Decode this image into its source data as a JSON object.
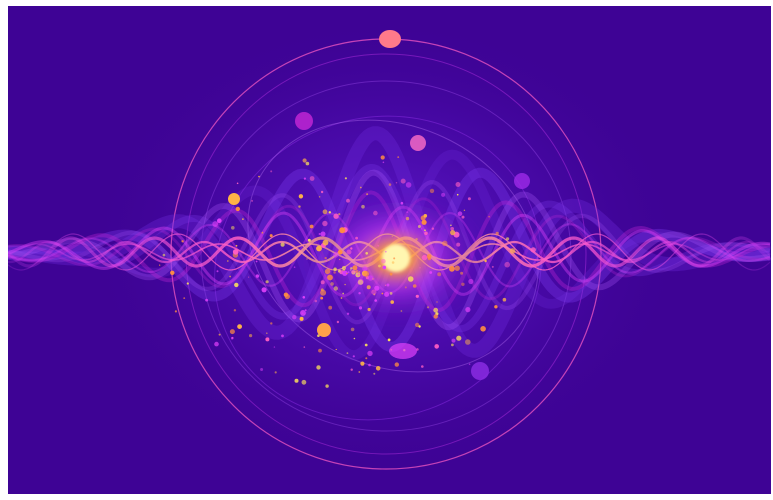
{
  "image": {
    "subject": "abstract-quantum-wave",
    "colors": {
      "background": "#3e0395",
      "deep_violet": "#5a14c8",
      "violet": "#8a2be2",
      "magenta": "#e040fb",
      "pink": "#ff5ec4",
      "orange": "#ff9a3c",
      "yellow": "#ffe35a",
      "frame": "#ffffff"
    }
  }
}
